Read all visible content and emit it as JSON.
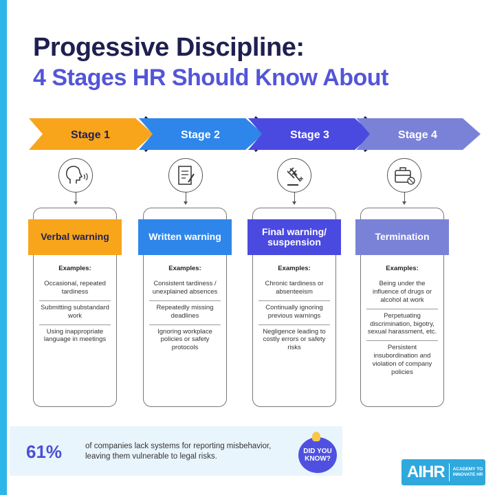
{
  "title": "Progessive Discipline:",
  "subtitle": "4 Stages HR Should Know About",
  "examples_label": "Examples:",
  "stages": [
    {
      "label": "Stage 1",
      "name": "Verbal warning",
      "color": "#f8a51c",
      "text_color": "#1f2050",
      "icon": "speaking-head-icon",
      "examples": [
        "Occasional, repeated tardiness",
        "Submitting substandard work",
        "Using inappropriate language in meetings"
      ]
    },
    {
      "label": "Stage 2",
      "name": "Written warning",
      "color": "#2f86ea",
      "text_color": "#ffffff",
      "icon": "document-pen-icon",
      "examples": [
        "Consistent tardiness / unexplained absences",
        "Repeatedly missing deadlines",
        "Ignoring workplace policies or safety protocols"
      ]
    },
    {
      "label": "Stage 3",
      "name": "Final warning/ suspension",
      "color": "#4a4ae0",
      "text_color": "#ffffff",
      "icon": "gavel-icon",
      "examples": [
        "Chronic tardiness or absenteeism",
        "Continually ignoring previous warnings",
        "Negligence leading to costly errors or safety risks"
      ]
    },
    {
      "label": "Stage 4",
      "name": "Termination",
      "color": "#7a82d8",
      "text_color": "#ffffff",
      "icon": "briefcase-cancel-icon",
      "examples": [
        "Being under the influence of drugs or alcohol at work",
        "Perpetuating discrimination, bigotry, sexual harassment, etc.",
        "Persistent insubordination and violation of company policies"
      ]
    }
  ],
  "fact": {
    "percent": "61%",
    "line1": "of companies lack systems for reporting misbehavior,",
    "line2": "leaving them vulnerable to legal risks.",
    "badge_line1": "DID YOU",
    "badge_line2": "KNOW?"
  },
  "logo": {
    "name": "AIHR",
    "tag_line1": "ACADEMY TO",
    "tag_line2": "INNOVATE HR"
  }
}
